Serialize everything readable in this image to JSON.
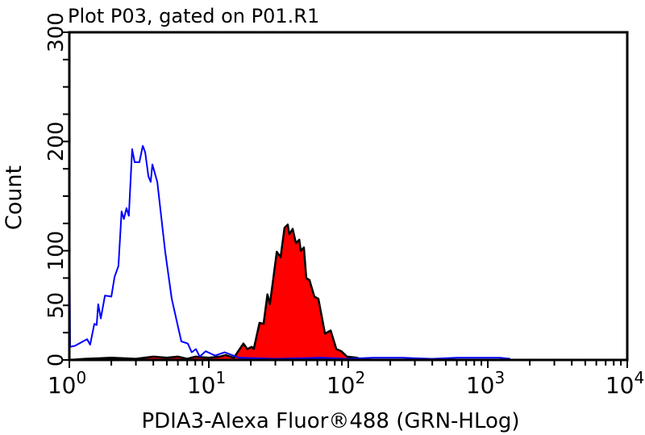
{
  "chart_data": {
    "type": "area",
    "title": "Plot P03, gated on P01.R1",
    "xlabel": "PDIA3-Alexa Fluor®488 (GRN-HLog)",
    "ylabel": "Count",
    "x_scale": "log",
    "xlim": [
      1,
      10000
    ],
    "ylim": [
      0,
      300
    ],
    "x_ticks": [
      {
        "base": "10",
        "exp": "0",
        "value": 1
      },
      {
        "base": "10",
        "exp": "1",
        "value": 10
      },
      {
        "base": "10",
        "exp": "2",
        "value": 100
      },
      {
        "base": "10",
        "exp": "3",
        "value": 1000
      },
      {
        "base": "10",
        "exp": "4",
        "value": 10000
      }
    ],
    "y_ticks": [
      {
        "label": "0",
        "value": 0
      },
      {
        "label": "50",
        "value": 50
      },
      {
        "label": "100",
        "value": 100
      },
      {
        "label": "200",
        "value": 200
      },
      {
        "label": "300",
        "value": 300
      }
    ],
    "grid": false,
    "series": [
      {
        "style": "line",
        "color": "#0000ff",
        "points": [
          [
            1.0,
            148
          ],
          [
            1.013,
            12
          ],
          [
            1.1,
            13
          ],
          [
            1.34,
            19
          ],
          [
            1.41,
            14
          ],
          [
            1.51,
            33
          ],
          [
            1.57,
            32
          ],
          [
            1.61,
            51
          ],
          [
            1.68,
            38
          ],
          [
            1.8,
            59
          ],
          [
            2.0,
            58
          ],
          [
            2.11,
            76
          ],
          [
            2.25,
            86
          ],
          [
            2.37,
            136
          ],
          [
            2.46,
            129
          ],
          [
            2.57,
            139
          ],
          [
            2.67,
            132
          ],
          [
            2.82,
            193
          ],
          [
            2.94,
            181
          ],
          [
            3.18,
            181
          ],
          [
            3.36,
            196
          ],
          [
            3.5,
            190
          ],
          [
            3.69,
            168
          ],
          [
            3.83,
            163
          ],
          [
            3.94,
            179
          ],
          [
            4.27,
            163
          ],
          [
            4.56,
            131
          ],
          [
            4.87,
            99
          ],
          [
            5.42,
            56
          ],
          [
            6.35,
            17
          ],
          [
            7.07,
            15
          ],
          [
            7.54,
            7
          ],
          [
            8.08,
            10
          ],
          [
            8.6,
            3
          ],
          [
            9.5,
            8
          ],
          [
            11.1,
            4
          ],
          [
            13.0,
            7
          ],
          [
            16.5,
            2
          ],
          [
            30,
            1
          ],
          [
            65,
            2
          ],
          [
            97,
            1
          ],
          [
            150,
            2
          ],
          [
            246,
            2
          ],
          [
            400,
            1
          ],
          [
            600,
            2
          ],
          [
            935,
            2
          ],
          [
            1220,
            2
          ],
          [
            1450,
            1
          ]
        ]
      },
      {
        "style": "filled",
        "color": "#ff0000",
        "outline": "#000000",
        "points": [
          [
            1.0,
            0
          ],
          [
            1.3,
            1
          ],
          [
            2,
            2
          ],
          [
            3,
            1
          ],
          [
            4,
            3
          ],
          [
            5,
            2
          ],
          [
            6,
            3
          ],
          [
            7,
            1
          ],
          [
            8,
            3
          ],
          [
            10,
            2
          ],
          [
            12,
            3
          ],
          [
            13.2,
            4.5
          ],
          [
            15.1,
            2
          ],
          [
            17.7,
            15
          ],
          [
            18.9,
            10
          ],
          [
            20.3,
            12
          ],
          [
            21.0,
            10
          ],
          [
            23.1,
            34
          ],
          [
            24.7,
            33
          ],
          [
            26.3,
            60
          ],
          [
            27.4,
            51
          ],
          [
            28.6,
            69
          ],
          [
            30.7,
            99
          ],
          [
            32.7,
            94
          ],
          [
            34.9,
            121
          ],
          [
            36.8,
            124
          ],
          [
            37.8,
            115
          ],
          [
            39.9,
            120
          ],
          [
            42.1,
            107
          ],
          [
            44.5,
            110
          ],
          [
            45.6,
            100
          ],
          [
            48.0,
            103
          ],
          [
            50.0,
            75
          ],
          [
            52.7,
            73
          ],
          [
            57.1,
            58
          ],
          [
            61.0,
            56
          ],
          [
            68.1,
            24
          ],
          [
            74.7,
            27
          ],
          [
            82.1,
            10
          ],
          [
            89.1,
            8
          ],
          [
            97.9,
            3
          ],
          [
            115,
            2
          ],
          [
            130,
            0
          ]
        ]
      }
    ]
  }
}
